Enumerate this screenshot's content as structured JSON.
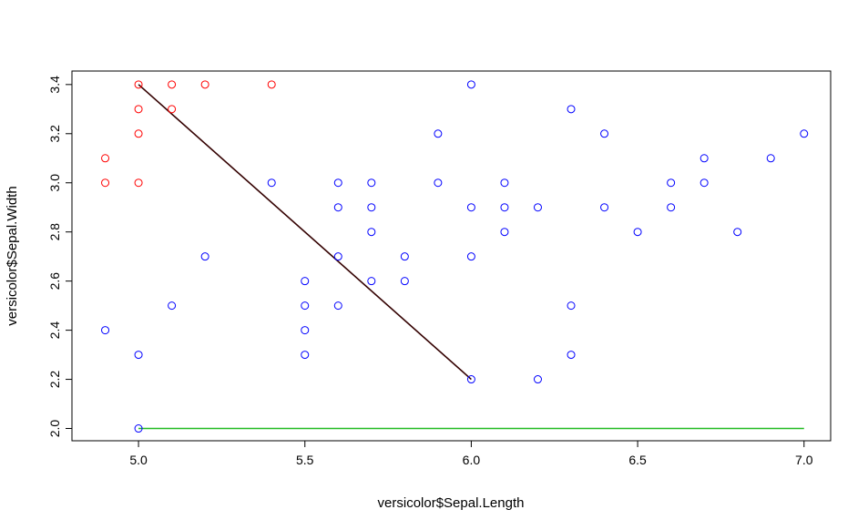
{
  "chart_data": {
    "type": "scatter",
    "title": "",
    "xlabel": "versicolor$Sepal.Length",
    "ylabel": "versicolor$Sepal.Width",
    "xlim": [
      4.8,
      7.08
    ],
    "ylim": [
      1.95,
      3.455
    ],
    "x_ticks": [
      5.0,
      5.5,
      6.0,
      6.5,
      7.0
    ],
    "x_tick_labels": [
      "5.0",
      "5.5",
      "6.0",
      "6.5",
      "7.0"
    ],
    "y_ticks": [
      2.0,
      2.2,
      2.4,
      2.6,
      2.8,
      3.0,
      3.2,
      3.4
    ],
    "y_tick_labels": [
      "2.0",
      "2.2",
      "2.4",
      "2.6",
      "2.8",
      "3.0",
      "3.2",
      "3.4"
    ],
    "grid": false,
    "series": [
      {
        "color": "#ff0000",
        "marker": "open-circle",
        "points": [
          [
            4.9,
            3.1
          ],
          [
            4.9,
            3.0
          ],
          [
            5.0,
            3.4
          ],
          [
            5.0,
            3.3
          ],
          [
            5.0,
            3.2
          ],
          [
            5.0,
            3.0
          ],
          [
            5.1,
            3.4
          ],
          [
            5.1,
            3.3
          ],
          [
            5.2,
            3.4
          ],
          [
            5.4,
            3.4
          ]
        ]
      },
      {
        "color": "#0000ff",
        "marker": "open-circle",
        "points": [
          [
            4.9,
            2.4
          ],
          [
            5.0,
            2.3
          ],
          [
            5.0,
            2.0
          ],
          [
            5.1,
            2.5
          ],
          [
            5.2,
            2.7
          ],
          [
            5.4,
            3.0
          ],
          [
            5.5,
            2.6
          ],
          [
            5.5,
            2.5
          ],
          [
            5.5,
            2.4
          ],
          [
            5.5,
            2.3
          ],
          [
            5.6,
            3.0
          ],
          [
            5.6,
            2.9
          ],
          [
            5.6,
            2.7
          ],
          [
            5.6,
            2.5
          ],
          [
            5.7,
            3.0
          ],
          [
            5.7,
            2.9
          ],
          [
            5.7,
            2.8
          ],
          [
            5.7,
            2.6
          ],
          [
            5.8,
            2.7
          ],
          [
            5.8,
            2.6
          ],
          [
            5.9,
            3.2
          ],
          [
            5.9,
            3.0
          ],
          [
            6.0,
            3.4
          ],
          [
            6.0,
            2.9
          ],
          [
            6.0,
            2.7
          ],
          [
            6.0,
            2.2
          ],
          [
            6.1,
            3.0
          ],
          [
            6.1,
            2.9
          ],
          [
            6.1,
            2.8
          ],
          [
            6.2,
            2.9
          ],
          [
            6.2,
            2.2
          ],
          [
            6.3,
            3.3
          ],
          [
            6.3,
            2.5
          ],
          [
            6.3,
            2.3
          ],
          [
            6.4,
            3.2
          ],
          [
            6.4,
            2.9
          ],
          [
            6.5,
            2.8
          ],
          [
            6.6,
            3.0
          ],
          [
            6.6,
            2.9
          ],
          [
            6.7,
            3.1
          ],
          [
            6.7,
            3.0
          ],
          [
            6.8,
            2.8
          ],
          [
            6.9,
            3.1
          ],
          [
            7.0,
            3.2
          ]
        ]
      }
    ],
    "lines": [
      {
        "color": "#330000",
        "points": [
          [
            5.0,
            3.4
          ],
          [
            6.0,
            2.2
          ]
        ]
      },
      {
        "color": "#22bb22",
        "points": [
          [
            5.0,
            2.0
          ],
          [
            7.0,
            2.0
          ]
        ]
      }
    ]
  }
}
